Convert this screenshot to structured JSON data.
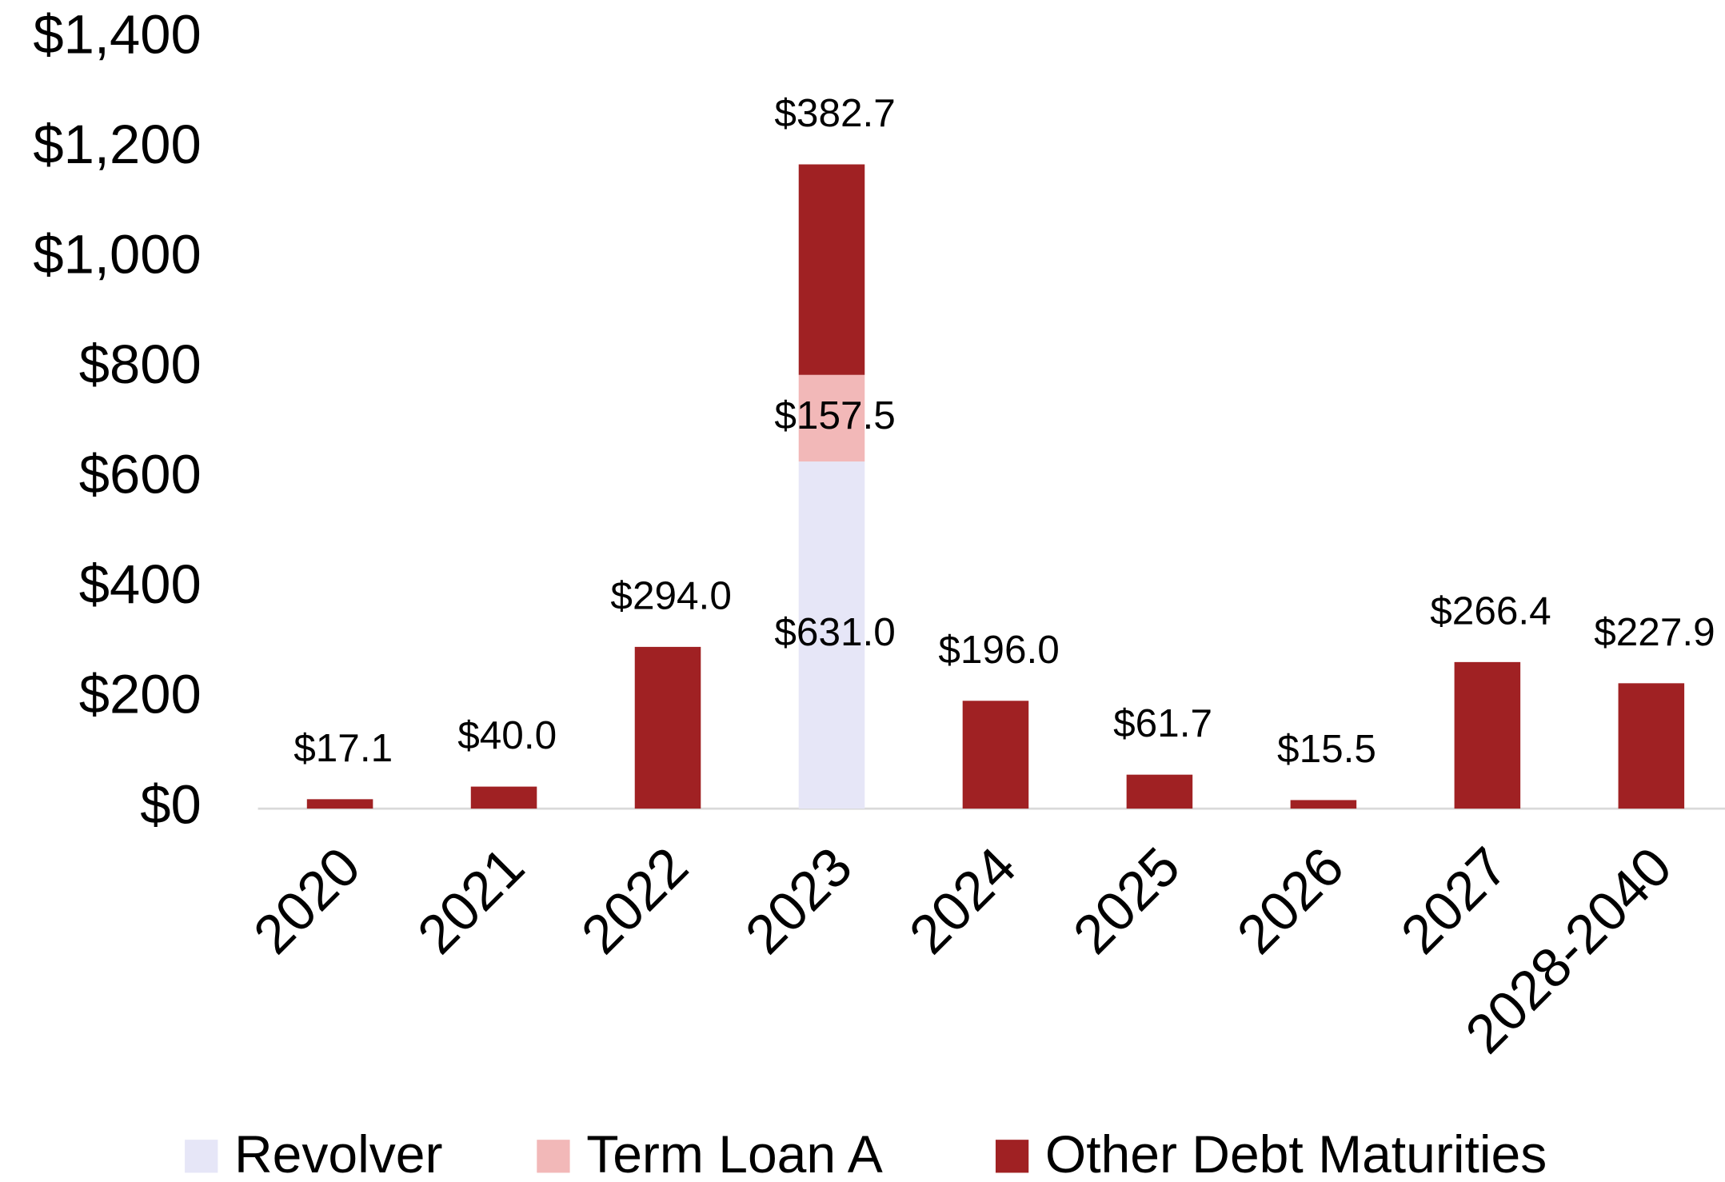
{
  "chart_data": {
    "type": "stacked_bar",
    "categories": [
      "2020",
      "2021",
      "2022",
      "2023",
      "2024",
      "2025",
      "2026",
      "2027",
      "2028-2040"
    ],
    "series": [
      {
        "name": "Revolver",
        "color": "#e6e6f7",
        "values": [
          null,
          null,
          null,
          631.0,
          null,
          null,
          null,
          null,
          null
        ],
        "value_labels": [
          null,
          null,
          null,
          "$631.0",
          null,
          null,
          null,
          null,
          null
        ]
      },
      {
        "name": "Term Loan A",
        "color": "#f2b8b8",
        "values": [
          null,
          null,
          null,
          157.5,
          null,
          null,
          null,
          null,
          null
        ],
        "value_labels": [
          null,
          null,
          null,
          "$157.5",
          null,
          null,
          null,
          null,
          null
        ]
      },
      {
        "name": "Other Debt Maturities",
        "color": "#a02123",
        "values": [
          17.1,
          40.0,
          294.0,
          382.7,
          196.0,
          61.7,
          15.5,
          266.4,
          227.9
        ],
        "value_labels": [
          "$17.1",
          "$40.0",
          "$294.0",
          "$382.7",
          "$196.0",
          "$61.7",
          "$15.5",
          "$266.4",
          "$227.9"
        ]
      }
    ],
    "ylim": [
      0,
      1400
    ],
    "yticks": [
      {
        "value": 0,
        "label": "$0"
      },
      {
        "value": 200,
        "label": "$200"
      },
      {
        "value": 400,
        "label": "$400"
      },
      {
        "value": 600,
        "label": "$600"
      },
      {
        "value": 800,
        "label": "$800"
      },
      {
        "value": 1000,
        "label": "$1,000"
      },
      {
        "value": 1200,
        "label": "$1,200"
      },
      {
        "value": 1400,
        "label": "$1,400"
      }
    ],
    "grid": false,
    "legend": "bottom"
  }
}
